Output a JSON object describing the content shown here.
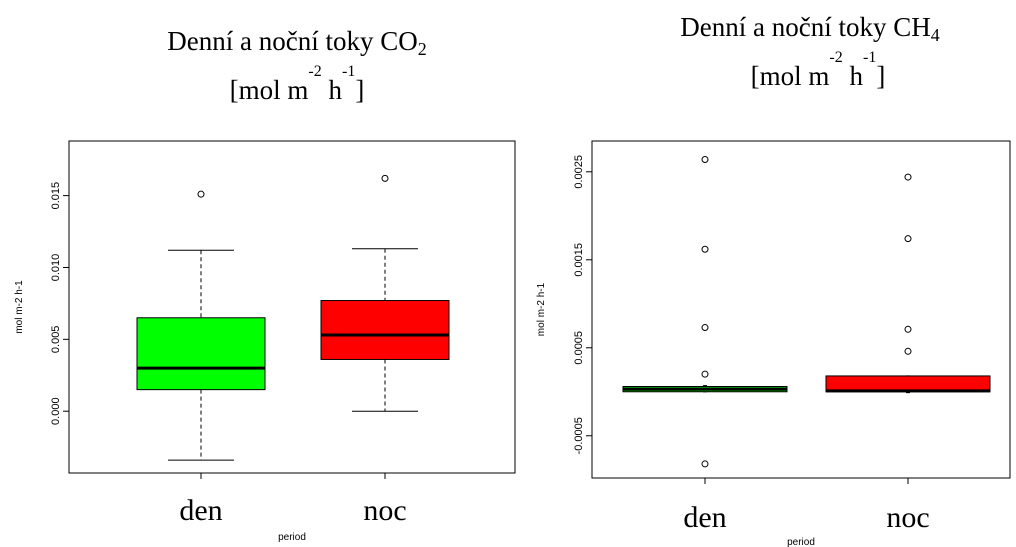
{
  "chart_data": [
    {
      "type": "box",
      "title_main": "Denní a noční toky CO",
      "title_sub": "2",
      "unit_prefix": "[mol m",
      "unit_exp1": "-2",
      "unit_mid": " h",
      "unit_exp2": "-1",
      "unit_suffix": "]",
      "xlabel": "period",
      "ylabel": "mol m-2 h-1",
      "ylim": [
        -0.0043,
        0.0188
      ],
      "y_ticks": [
        0.0,
        0.005,
        0.01,
        0.015
      ],
      "y_tick_labels": [
        "0.000",
        "0.005",
        "0.010",
        "0.015"
      ],
      "categories": [
        "den",
        "noc"
      ],
      "boxes": [
        {
          "category": "den",
          "color": "#00ff00",
          "whisker_low": -0.0034,
          "q1": 0.0015,
          "median": 0.003,
          "q3": 0.0065,
          "whisker_high": 0.0112,
          "outliers": [
            0.0151
          ]
        },
        {
          "category": "noc",
          "color": "#ff0000",
          "whisker_low": 0.0,
          "q1": 0.0036,
          "median": 0.0053,
          "q3": 0.0077,
          "whisker_high": 0.0113,
          "outliers": [
            0.0162
          ]
        }
      ]
    },
    {
      "type": "box",
      "title_main": "Denní a noční toky CH",
      "title_sub": "4",
      "unit_prefix": "[mol m",
      "unit_exp1": "-2",
      "unit_mid": " h",
      "unit_exp2": "-1",
      "unit_suffix": "]",
      "xlabel": "period",
      "ylabel": "mol m-2 h-1",
      "ylim": [
        -0.00098,
        0.00285
      ],
      "y_ticks": [
        -0.0005,
        0.0005,
        0.0015,
        0.0025
      ],
      "y_tick_labels": [
        "-0.0005",
        "0.0005",
        "0.0015",
        "0.0025"
      ],
      "categories": [
        "den",
        "noc"
      ],
      "boxes": [
        {
          "category": "den",
          "color": "#00cc00",
          "whisker_low": 0.0,
          "q1": 0.0,
          "median": 3e-05,
          "q3": 6e-05,
          "whisker_high": 7e-05,
          "outliers": [
            0.00264,
            0.00162,
            0.00073,
            0.0002,
            -0.00082
          ]
        },
        {
          "category": "noc",
          "color": "#ff0000",
          "whisker_low": -1e-05,
          "q1": 0.0,
          "median": 1e-05,
          "q3": 0.00018,
          "whisker_high": 0.00018,
          "outliers": [
            0.00244,
            0.00174,
            0.00071,
            0.00046
          ]
        }
      ]
    }
  ]
}
